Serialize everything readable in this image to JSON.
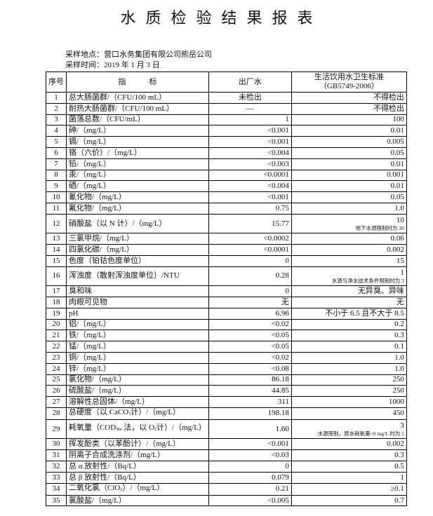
{
  "title": "水质检验结果报表",
  "meta": {
    "location": "采样地点：营口水务集团有限公司熊岳公司",
    "date": "采样时间：2019 年 1 月 3 日"
  },
  "table": {
    "headers": {
      "seq": "序号",
      "indicator": "指　　　标",
      "outlet": "出厂水",
      "standard_line1": "生活饮用水卫生标准",
      "standard_line2": "（GB5749-2006）"
    },
    "rows": [
      {
        "no": "1",
        "ind": [
          {
            "t": "总大肠菌群/（CFU/100 mL）"
          }
        ],
        "out": "未检出",
        "out_center": true,
        "std": "不得检出"
      },
      {
        "no": "2",
        "ind": [
          {
            "t": "耐热大肠菌群/（CFU/100 mL）"
          }
        ],
        "out": "—",
        "out_center": true,
        "std": "不得检出"
      },
      {
        "no": "3",
        "ind": [
          {
            "t": "菌落总数/（CFU/mL）"
          }
        ],
        "out": "1",
        "std": "100"
      },
      {
        "no": "4",
        "ind": [
          {
            "t": "砷/（mg/L）"
          }
        ],
        "out": "<0.001",
        "std": "0.01"
      },
      {
        "no": "5",
        "ind": [
          {
            "t": "镉/（mg/L）"
          }
        ],
        "out": "<0.001",
        "std": "0.005"
      },
      {
        "no": "6",
        "ind": [
          {
            "t": "铬（六价）/（mg/L）"
          }
        ],
        "out": "<0.004",
        "std": "0.05"
      },
      {
        "no": "7",
        "ind": [
          {
            "t": "铅/（mg/L）"
          }
        ],
        "out": "<0.003",
        "std": "0.01"
      },
      {
        "no": "8",
        "ind": [
          {
            "t": "汞/（mg/L）"
          }
        ],
        "out": "<0.0001",
        "std": "0.001"
      },
      {
        "no": "9",
        "ind": [
          {
            "t": "硒/（mg/L）"
          }
        ],
        "out": "<0.004",
        "std": "0.01"
      },
      {
        "no": "10",
        "ind": [
          {
            "t": "氰化物/（mg/L）"
          }
        ],
        "out": "<0.001",
        "std": "0.05"
      },
      {
        "no": "11",
        "ind": [
          {
            "t": "氟化物/（mg/L）"
          }
        ],
        "out": "0.75",
        "std": "1.0"
      },
      {
        "no": "12",
        "ind": [
          {
            "t": "硝酸盐（以 N 计）/（mg/L）"
          }
        ],
        "out": "15.77",
        "std": "10",
        "note": "地下水源限制时为 20"
      },
      {
        "no": "13",
        "ind": [
          {
            "t": "三氯甲烷/（mg/L）"
          }
        ],
        "out": "<0.0002",
        "std": "0.06"
      },
      {
        "no": "14",
        "ind": [
          {
            "t": "四氯化碳/（mg/L）"
          }
        ],
        "out": "<0.0001",
        "std": "0.002"
      },
      {
        "no": "15",
        "ind": [
          {
            "t": "色度（铂钴色度单位）"
          }
        ],
        "out": "0",
        "std": "15"
      },
      {
        "no": "16",
        "ind": [
          {
            "t": "浑浊度（散射浑浊度单位）/NTU"
          }
        ],
        "out": "0.28",
        "std": "1",
        "note": "水源与净水技术条件限制时为 3"
      },
      {
        "no": "17",
        "ind": [
          {
            "t": "臭和味"
          }
        ],
        "out": "0",
        "std": "无异臭、异味"
      },
      {
        "no": "18",
        "ind": [
          {
            "t": "肉眼可见物"
          }
        ],
        "out": "无",
        "std": "无"
      },
      {
        "no": "19",
        "ind": [
          {
            "t": "pH"
          }
        ],
        "out": "6.96",
        "std": "不小于 6.5 且不大于 8.5"
      },
      {
        "no": "20",
        "ind": [
          {
            "t": "铝/（mg/L）"
          }
        ],
        "out": "<0.02",
        "std": "0.2"
      },
      {
        "no": "21",
        "ind": [
          {
            "t": "铁/（mg/L）"
          }
        ],
        "out": "<0.05",
        "std": "0.3"
      },
      {
        "no": "22",
        "ind": [
          {
            "t": "锰/（mg/L）"
          }
        ],
        "out": "<0.05",
        "std": "0.1"
      },
      {
        "no": "23",
        "ind": [
          {
            "t": "铜/（mg/L）"
          }
        ],
        "out": "<0.02",
        "std": "1.0"
      },
      {
        "no": "24",
        "ind": [
          {
            "t": "锌/（mg/L）"
          }
        ],
        "out": "<0.08",
        "std": "1.0"
      },
      {
        "no": "25",
        "ind": [
          {
            "t": "氯化物/（mg/L）"
          }
        ],
        "out": "86.18",
        "std": "250"
      },
      {
        "no": "26",
        "ind": [
          {
            "t": "硫酸盐/（mg/L）"
          }
        ],
        "out": "44.85",
        "std": "250"
      },
      {
        "no": "27",
        "ind": [
          {
            "t": "溶解性总固体/（mg/L）"
          }
        ],
        "out": "311",
        "std": "1000"
      },
      {
        "no": "28",
        "ind": [
          {
            "t": "总硬度（以 CaCO"
          },
          {
            "sub": "3"
          },
          {
            "t": "计）/（mg/L）"
          }
        ],
        "out": "198.18",
        "std": "450"
      },
      {
        "no": "29",
        "ind": [
          {
            "t": "耗氧量（COD"
          },
          {
            "sub": "Mn"
          },
          {
            "t": " 法，以 O"
          },
          {
            "sub": "2"
          },
          {
            "t": "计）/（mg/L）"
          }
        ],
        "out": "1.60",
        "std": "3",
        "note": "水源限制，原水耗氧量>6 mg/L 时为 5"
      },
      {
        "no": "30",
        "ind": [
          {
            "t": "挥发酚类（以苯酚计）/（mg/L）"
          }
        ],
        "out": "<0.001",
        "std": "0.002"
      },
      {
        "no": "31",
        "ind": [
          {
            "t": "阴离子合成洗涤剂/（mg/L）"
          }
        ],
        "out": "<0.03",
        "std": "0.3"
      },
      {
        "no": "32",
        "ind": [
          {
            "t": "总 α 放射性/（Bq/L）"
          }
        ],
        "out": "0",
        "std": "0.5"
      },
      {
        "no": "33",
        "ind": [
          {
            "t": "总 β 放射性/（Bq/L）"
          }
        ],
        "out": "0.079",
        "std": "1"
      },
      {
        "no": "34",
        "ind": [
          {
            "t": "二氧化氯（ClO"
          },
          {
            "sub": "2"
          },
          {
            "t": "）/（mg/L）"
          }
        ],
        "out": "0.21",
        "std": "≥0.1"
      },
      {
        "no": "35",
        "ind": [
          {
            "t": "氯酸盐/（mg/L）"
          }
        ],
        "out": "<0.005",
        "std": "0.7"
      }
    ]
  }
}
